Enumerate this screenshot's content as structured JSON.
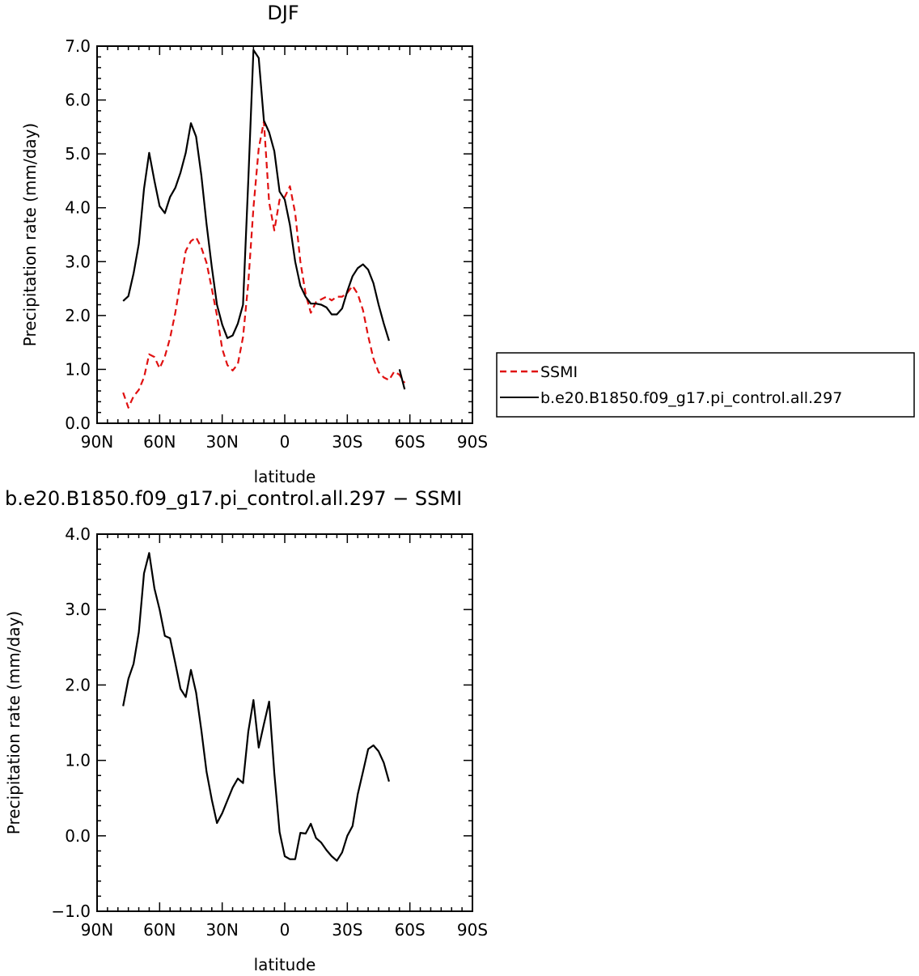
{
  "chart_data": [
    {
      "type": "line",
      "title": "DJF",
      "xlabel": "latitude",
      "ylabel": "Precipitation rate (mm/day)",
      "xlim": [
        90,
        -90
      ],
      "ylim": [
        0.0,
        7.0
      ],
      "xticks": [
        {
          "value": 90,
          "label": "90N"
        },
        {
          "value": 60,
          "label": "60N"
        },
        {
          "value": 30,
          "label": "30N"
        },
        {
          "value": 0,
          "label": "0"
        },
        {
          "value": -30,
          "label": "30S"
        },
        {
          "value": -60,
          "label": "60S"
        },
        {
          "value": -90,
          "label": "90S"
        }
      ],
      "yticks": [
        {
          "value": 0.0,
          "label": "0.0"
        },
        {
          "value": 1.0,
          "label": "1.0"
        },
        {
          "value": 2.0,
          "label": "2.0"
        },
        {
          "value": 3.0,
          "label": "3.0"
        },
        {
          "value": 4.0,
          "label": "4.0"
        },
        {
          "value": 5.0,
          "label": "5.0"
        },
        {
          "value": 6.0,
          "label": "6.0"
        },
        {
          "value": 7.0,
          "label": "7.0"
        }
      ],
      "legend_position": "right",
      "series": [
        {
          "name": "SSMI",
          "color": "#e01010",
          "dash": "dashed",
          "points": [
            [
              77.5,
              0.57
            ],
            [
              75,
              0.29
            ],
            [
              72.5,
              0.5
            ],
            [
              70,
              0.62
            ],
            [
              67.5,
              0.85
            ],
            [
              65,
              1.28
            ],
            [
              62.5,
              1.23
            ],
            [
              60,
              1.02
            ],
            [
              57.5,
              1.24
            ],
            [
              55,
              1.58
            ],
            [
              52.5,
              2.05
            ],
            [
              50,
              2.63
            ],
            [
              47.5,
              3.2
            ],
            [
              45,
              3.38
            ],
            [
              42.5,
              3.45
            ],
            [
              40,
              3.26
            ],
            [
              37.5,
              2.98
            ],
            [
              35,
              2.5
            ],
            [
              32.5,
              2.0
            ],
            [
              30,
              1.38
            ],
            [
              27.5,
              1.08
            ],
            [
              25,
              0.98
            ],
            [
              22.5,
              1.1
            ],
            [
              20,
              1.6
            ],
            [
              17.5,
              2.6
            ],
            [
              15,
              4.0
            ],
            [
              12.5,
              5.1
            ],
            [
              10,
              5.6
            ],
            [
              7.5,
              4.1
            ],
            [
              5,
              3.58
            ],
            [
              2.5,
              4.15
            ],
            [
              0,
              4.2
            ],
            [
              -2.5,
              4.4
            ],
            [
              -5,
              3.9
            ],
            [
              -7.5,
              3.0
            ],
            [
              -10,
              2.4
            ],
            [
              -12.5,
              2.05
            ],
            [
              -15,
              2.25
            ],
            [
              -17.5,
              2.3
            ],
            [
              -20,
              2.35
            ],
            [
              -22.5,
              2.28
            ],
            [
              -25,
              2.35
            ],
            [
              -27.5,
              2.35
            ],
            [
              -30,
              2.42
            ],
            [
              -32.5,
              2.55
            ],
            [
              -35,
              2.4
            ],
            [
              -37.5,
              2.1
            ],
            [
              -40,
              1.62
            ],
            [
              -42.5,
              1.2
            ],
            [
              -45,
              0.95
            ],
            [
              -47.5,
              0.85
            ],
            [
              -50,
              0.8
            ],
            [
              -52.5,
              0.96
            ],
            [
              -55,
              0.9
            ],
            [
              -57.5,
              0.75
            ]
          ]
        },
        {
          "name": "b.e20.B1850.f09_g17.pi_control.all.297",
          "color": "#000000",
          "dash": "solid",
          "points": [
            [
              77.5,
              2.27
            ],
            [
              75,
              2.36
            ],
            [
              72.5,
              2.78
            ],
            [
              70,
              3.33
            ],
            [
              67.5,
              4.35
            ],
            [
              65,
              5.02
            ],
            [
              62.5,
              4.5
            ],
            [
              60,
              4.03
            ],
            [
              57.5,
              3.9
            ],
            [
              55,
              4.2
            ],
            [
              52.5,
              4.37
            ],
            [
              50,
              4.65
            ],
            [
              47.5,
              5.02
            ],
            [
              45,
              5.57
            ],
            [
              42.5,
              5.32
            ],
            [
              40,
              4.6
            ],
            [
              37.5,
              3.7
            ],
            [
              35,
              2.9
            ],
            [
              32.5,
              2.2
            ],
            [
              30,
              1.83
            ],
            [
              27.5,
              1.58
            ],
            [
              25,
              1.63
            ],
            [
              22.5,
              1.85
            ],
            [
              20,
              2.2
            ],
            [
              17.5,
              4.5
            ],
            [
              15,
              6.93
            ],
            [
              12.5,
              6.78
            ],
            [
              10,
              5.62
            ],
            [
              7.5,
              5.4
            ],
            [
              5,
              5.05
            ],
            [
              2.5,
              4.3
            ],
            [
              0,
              4.15
            ],
            [
              -2.5,
              3.68
            ],
            [
              -5,
              3.0
            ],
            [
              -7.5,
              2.55
            ],
            [
              -10,
              2.35
            ],
            [
              -12.5,
              2.22
            ],
            [
              -15,
              2.22
            ],
            [
              -17.5,
              2.2
            ],
            [
              -20,
              2.15
            ],
            [
              -22.5,
              2.02
            ],
            [
              -25,
              2.02
            ],
            [
              -27.5,
              2.13
            ],
            [
              -30,
              2.45
            ],
            [
              -32.5,
              2.73
            ],
            [
              -35,
              2.88
            ],
            [
              -37.5,
              2.95
            ],
            [
              -40,
              2.85
            ],
            [
              -42.5,
              2.6
            ],
            [
              -45,
              2.2
            ],
            [
              -47.5,
              1.85
            ],
            [
              -50,
              1.53
            ],
            null,
            [
              -55,
              1.0
            ],
            [
              -57.5,
              0.63
            ]
          ]
        }
      ]
    },
    {
      "type": "line",
      "title": "b.e20.B1850.f09_g17.pi_control.all.297 − SSMI",
      "xlabel": "latitude",
      "ylabel": "Precipitation rate (mm/day)",
      "xlim": [
        90,
        -90
      ],
      "ylim": [
        -1.0,
        4.0
      ],
      "xticks": [
        {
          "value": 90,
          "label": "90N"
        },
        {
          "value": 60,
          "label": "60N"
        },
        {
          "value": 30,
          "label": "30N"
        },
        {
          "value": 0,
          "label": "0"
        },
        {
          "value": -30,
          "label": "30S"
        },
        {
          "value": -60,
          "label": "60S"
        },
        {
          "value": -90,
          "label": "90S"
        }
      ],
      "yticks": [
        {
          "value": -1.0,
          "label": "−1.0"
        },
        {
          "value": 0.0,
          "label": "0.0"
        },
        {
          "value": 1.0,
          "label": "1.0"
        },
        {
          "value": 2.0,
          "label": "2.0"
        },
        {
          "value": 3.0,
          "label": "3.0"
        },
        {
          "value": 4.0,
          "label": "4.0"
        }
      ],
      "series": [
        {
          "color": "#000000",
          "dash": "solid",
          "points": [
            [
              77.5,
              1.72
            ],
            [
              75,
              2.08
            ],
            [
              72.5,
              2.28
            ],
            [
              70,
              2.7
            ],
            [
              67.5,
              3.48
            ],
            [
              65,
              3.75
            ],
            [
              62.5,
              3.28
            ],
            [
              60,
              3.0
            ],
            [
              57.5,
              2.65
            ],
            [
              55,
              2.62
            ],
            [
              52.5,
              2.29
            ],
            [
              50,
              1.95
            ],
            [
              47.5,
              1.84
            ],
            [
              45,
              2.2
            ],
            [
              42.5,
              1.9
            ],
            [
              40,
              1.4
            ],
            [
              37.5,
              0.85
            ],
            [
              35,
              0.48
            ],
            [
              32.5,
              0.17
            ],
            [
              30,
              0.3
            ],
            [
              27.5,
              0.47
            ],
            [
              25,
              0.64
            ],
            [
              22.5,
              0.76
            ],
            [
              20,
              0.7
            ],
            [
              17.5,
              1.38
            ],
            [
              15,
              1.8
            ],
            [
              12.5,
              1.17
            ],
            [
              10,
              1.48
            ],
            [
              7.5,
              1.78
            ],
            [
              5,
              0.83
            ],
            [
              2.5,
              0.05
            ],
            [
              0,
              -0.27
            ],
            [
              -2.5,
              -0.31
            ],
            [
              -5,
              -0.31
            ],
            [
              -7.5,
              0.04
            ],
            [
              -10,
              0.03
            ],
            [
              -12.5,
              0.16
            ],
            [
              -15,
              -0.03
            ],
            [
              -17.5,
              -0.09
            ],
            [
              -20,
              -0.19
            ],
            [
              -22.5,
              -0.27
            ],
            [
              -25,
              -0.33
            ],
            [
              -27.5,
              -0.22
            ],
            [
              -30,
              0.0
            ],
            [
              -32.5,
              0.13
            ],
            [
              -35,
              0.55
            ],
            [
              -37.5,
              0.85
            ],
            [
              -40,
              1.15
            ],
            [
              -42.5,
              1.2
            ],
            [
              -45,
              1.12
            ],
            [
              -47.5,
              0.97
            ],
            [
              -50,
              0.72
            ]
          ]
        }
      ]
    }
  ]
}
